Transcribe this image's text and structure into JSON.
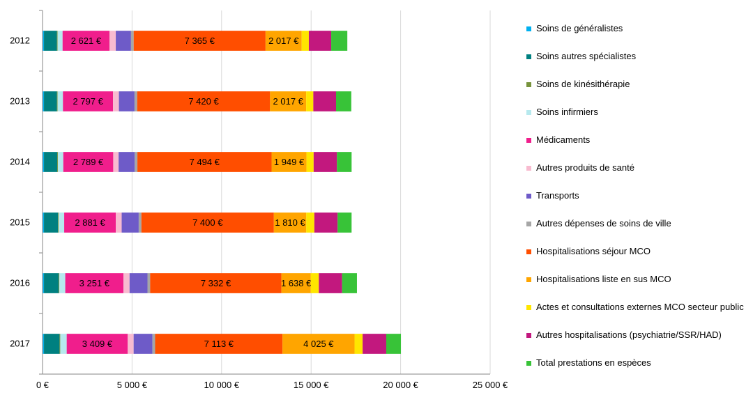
{
  "chart_data": {
    "type": "bar",
    "orientation": "horizontal",
    "stacked": true,
    "title": "",
    "xlabel": "",
    "ylabel": "",
    "xlim": [
      0,
      25000
    ],
    "x_ticks": [
      0,
      5000,
      10000,
      15000,
      20000,
      25000
    ],
    "x_tick_labels": [
      "0 €",
      "5 000 €",
      "10 000 €",
      "15 000 €",
      "20 000 €",
      "25 000 €"
    ],
    "grid": "vertical",
    "legend_position": "right",
    "categories": [
      "2012",
      "2013",
      "2014",
      "2015",
      "2016",
      "2017"
    ],
    "series": [
      {
        "name": "Soins de généralistes",
        "color": "#00B0F0",
        "values": [
          80,
          80,
          80,
          80,
          80,
          80
        ]
      },
      {
        "name": "Soins autres spécialistes",
        "color": "#008080",
        "values": [
          720,
          720,
          740,
          780,
          820,
          870
        ]
      },
      {
        "name": "Soins de kinésithérapie",
        "color": "#77933C",
        "values": [
          40,
          40,
          40,
          40,
          40,
          40
        ]
      },
      {
        "name": "Soins infirmiers",
        "color": "#B7E9EE",
        "values": [
          280,
          300,
          300,
          310,
          330,
          360
        ]
      },
      {
        "name": "Médicaments",
        "color": "#F01E8C",
        "values": [
          2621,
          2797,
          2789,
          2881,
          3251,
          3409
        ],
        "labels": [
          "2 621 €",
          "2 797 €",
          "2 789 €",
          "2 881 €",
          "3 251 €",
          "3 409 €"
        ]
      },
      {
        "name": "Autres produits de santé",
        "color": "#F8BBD0",
        "values": [
          350,
          330,
          300,
          330,
          340,
          330
        ]
      },
      {
        "name": "Transports",
        "color": "#6E5BC8",
        "values": [
          850,
          870,
          900,
          950,
          1000,
          1050
        ]
      },
      {
        "name": "Autres dépenses de soins de ville",
        "color": "#A6A6A6",
        "values": [
          150,
          150,
          150,
          150,
          150,
          150
        ]
      },
      {
        "name": "Hospitalisations séjour MCO",
        "color": "#FF4E00",
        "values": [
          7365,
          7420,
          7494,
          7400,
          7332,
          7113
        ],
        "labels": [
          "7 365 €",
          "7 420 €",
          "7 494 €",
          "7 400 €",
          "7 332 €",
          "7 113 €"
        ]
      },
      {
        "name": "Hospitalisations liste en sus MCO",
        "color": "#FFA500",
        "values": [
          2017,
          2017,
          1949,
          1810,
          1638,
          4025
        ],
        "labels": [
          "2 017 €",
          "2 017 €",
          "1 949 €",
          "1 810 €",
          "1 638 €",
          "4 025 €"
        ]
      },
      {
        "name": "Actes et consultations externes MCO secteur public",
        "color": "#FFE600",
        "values": [
          400,
          400,
          400,
          450,
          450,
          450
        ]
      },
      {
        "name": "Autres hospitalisations (psychiatrie/SSR/HAD)",
        "color": "#C2187E",
        "values": [
          1250,
          1270,
          1300,
          1300,
          1300,
          1320
        ]
      },
      {
        "name": "Total prestations en espèces",
        "color": "#38C338",
        "values": [
          900,
          850,
          820,
          780,
          830,
          820
        ]
      }
    ]
  }
}
